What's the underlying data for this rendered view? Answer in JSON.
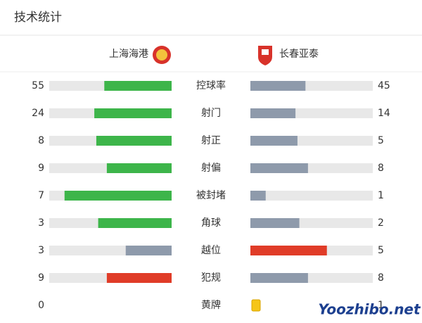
{
  "header": {
    "title": "技术统计"
  },
  "teams": {
    "home": "上海海港",
    "away": "长春亚泰"
  },
  "track_color": "#e8e8e8",
  "stats": [
    {
      "label": "控球率",
      "home": 55,
      "away": 45,
      "home_color": "#3db54a",
      "away_color": "#8e9aab"
    },
    {
      "label": "射门",
      "home": 24,
      "away": 14,
      "home_color": "#3db54a",
      "away_color": "#8e9aab"
    },
    {
      "label": "射正",
      "home": 8,
      "away": 5,
      "home_color": "#3db54a",
      "away_color": "#8e9aab"
    },
    {
      "label": "射偏",
      "home": 9,
      "away": 8,
      "home_color": "#3db54a",
      "away_color": "#8e9aab"
    },
    {
      "label": "被封堵",
      "home": 7,
      "away": 1,
      "home_color": "#3db54a",
      "away_color": "#8e9aab"
    },
    {
      "label": "角球",
      "home": 3,
      "away": 2,
      "home_color": "#3db54a",
      "away_color": "#8e9aab"
    },
    {
      "label": "越位",
      "home": 3,
      "away": 5,
      "home_color": "#8e9aab",
      "away_color": "#e03c28"
    },
    {
      "label": "犯规",
      "home": 9,
      "away": 8,
      "home_color": "#e03c28",
      "away_color": "#8e9aab"
    },
    {
      "label": "黄牌",
      "home": 0,
      "away": 1,
      "card_color": "#f5c518"
    }
  ],
  "watermark": "Yoozhibo.net"
}
